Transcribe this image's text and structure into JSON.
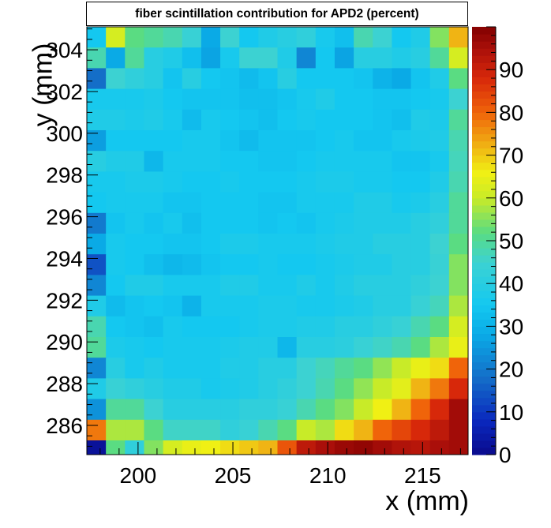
{
  "chart_data": {
    "type": "heatmap",
    "title": "fiber scintillation contribution for APD2 (percent)",
    "xlabel": "x (mm)",
    "ylabel": "y (mm)",
    "xlim": [
      197.3,
      217.4
    ],
    "ylim": [
      284.6,
      305.1
    ],
    "xticks": [
      200,
      205,
      210,
      215
    ],
    "yticks": [
      286,
      288,
      290,
      292,
      294,
      296,
      298,
      300,
      302,
      304
    ],
    "colorbar": {
      "min": 0,
      "max": 100,
      "ticks": [
        0,
        10,
        20,
        30,
        40,
        50,
        60,
        70,
        80,
        90
      ],
      "palette": "rainbow"
    },
    "bins_x": 20,
    "bins_y": 20,
    "rows_top_to_bottom": [
      [
        35,
        62,
        52,
        50,
        48,
        44,
        28,
        45,
        35,
        38,
        40,
        42,
        36,
        33,
        48,
        45,
        35,
        38,
        55,
        72
      ],
      [
        48,
        28,
        50,
        40,
        38,
        33,
        27,
        36,
        45,
        45,
        38,
        22,
        35,
        27,
        40,
        40,
        38,
        40,
        50,
        62
      ],
      [
        18,
        45,
        42,
        40,
        34,
        40,
        35,
        34,
        32,
        34,
        40,
        35,
        35,
        35,
        34,
        30,
        28,
        34,
        38,
        52
      ],
      [
        36,
        36,
        36,
        37,
        35,
        34,
        34,
        34,
        33,
        33,
        34,
        36,
        38,
        35,
        35,
        34,
        34,
        35,
        36,
        45
      ],
      [
        38,
        38,
        37,
        38,
        36,
        32,
        36,
        35,
        34,
        33,
        35,
        36,
        35,
        35,
        35,
        34,
        33,
        38,
        37,
        50
      ],
      [
        26,
        35,
        35,
        35,
        35,
        36,
        36,
        34,
        32,
        34,
        34,
        34,
        35,
        36,
        34,
        34,
        36,
        37,
        38,
        48
      ],
      [
        40,
        38,
        38,
        31,
        36,
        36,
        36,
        35,
        35,
        34,
        34,
        35,
        36,
        36,
        36,
        36,
        34,
        34,
        36,
        47
      ],
      [
        36,
        36,
        37,
        37,
        36,
        35,
        35,
        36,
        35,
        35,
        35,
        36,
        37,
        37,
        36,
        36,
        35,
        35,
        38,
        48
      ],
      [
        35,
        36,
        36,
        36,
        34,
        34,
        35,
        35,
        35,
        34,
        34,
        36,
        36,
        36,
        38,
        38,
        36,
        37,
        40,
        50
      ],
      [
        20,
        34,
        36,
        34,
        36,
        33,
        35,
        35,
        35,
        34,
        35,
        34,
        36,
        37,
        38,
        38,
        38,
        40,
        42,
        50
      ],
      [
        28,
        36,
        35,
        35,
        34,
        34,
        35,
        37,
        37,
        36,
        36,
        36,
        37,
        38,
        38,
        40,
        40,
        40,
        45,
        52
      ],
      [
        14,
        36,
        35,
        33,
        31,
        32,
        34,
        35,
        35,
        36,
        35,
        35,
        36,
        37,
        38,
        38,
        40,
        40,
        44,
        55
      ],
      [
        22,
        35,
        38,
        38,
        36,
        36,
        36,
        38,
        38,
        36,
        36,
        38,
        36,
        38,
        40,
        40,
        40,
        42,
        45,
        55
      ],
      [
        38,
        32,
        34,
        35,
        34,
        30,
        36,
        36,
        36,
        37,
        37,
        36,
        36,
        37,
        38,
        40,
        40,
        44,
        47,
        58
      ],
      [
        48,
        35,
        34,
        33,
        36,
        35,
        35,
        35,
        36,
        37,
        37,
        38,
        38,
        40,
        40,
        42,
        44,
        48,
        52,
        62
      ],
      [
        50,
        37,
        36,
        35,
        36,
        36,
        36,
        37,
        38,
        38,
        31,
        40,
        40,
        41,
        44,
        46,
        48,
        52,
        58,
        65
      ],
      [
        22,
        40,
        36,
        38,
        36,
        36,
        36,
        38,
        38,
        40,
        40,
        45,
        47,
        50,
        52,
        56,
        60,
        65,
        68,
        80
      ],
      [
        38,
        44,
        42,
        40,
        38,
        38,
        36,
        37,
        38,
        40,
        42,
        45,
        48,
        52,
        56,
        60,
        64,
        72,
        78,
        88
      ],
      [
        24,
        50,
        50,
        45,
        40,
        40,
        40,
        40,
        42,
        42,
        44,
        48,
        52,
        55,
        60,
        66,
        72,
        80,
        88,
        96
      ],
      [
        78,
        58,
        58,
        52,
        46,
        46,
        46,
        42,
        44,
        48,
        52,
        60,
        58,
        68,
        72,
        80,
        84,
        88,
        92,
        96
      ]
    ],
    "underflow_row": [
      2,
      52,
      42,
      55,
      62,
      65,
      66,
      68,
      70,
      72,
      82,
      92,
      95,
      97,
      98,
      96,
      94,
      93,
      95,
      96
    ]
  }
}
